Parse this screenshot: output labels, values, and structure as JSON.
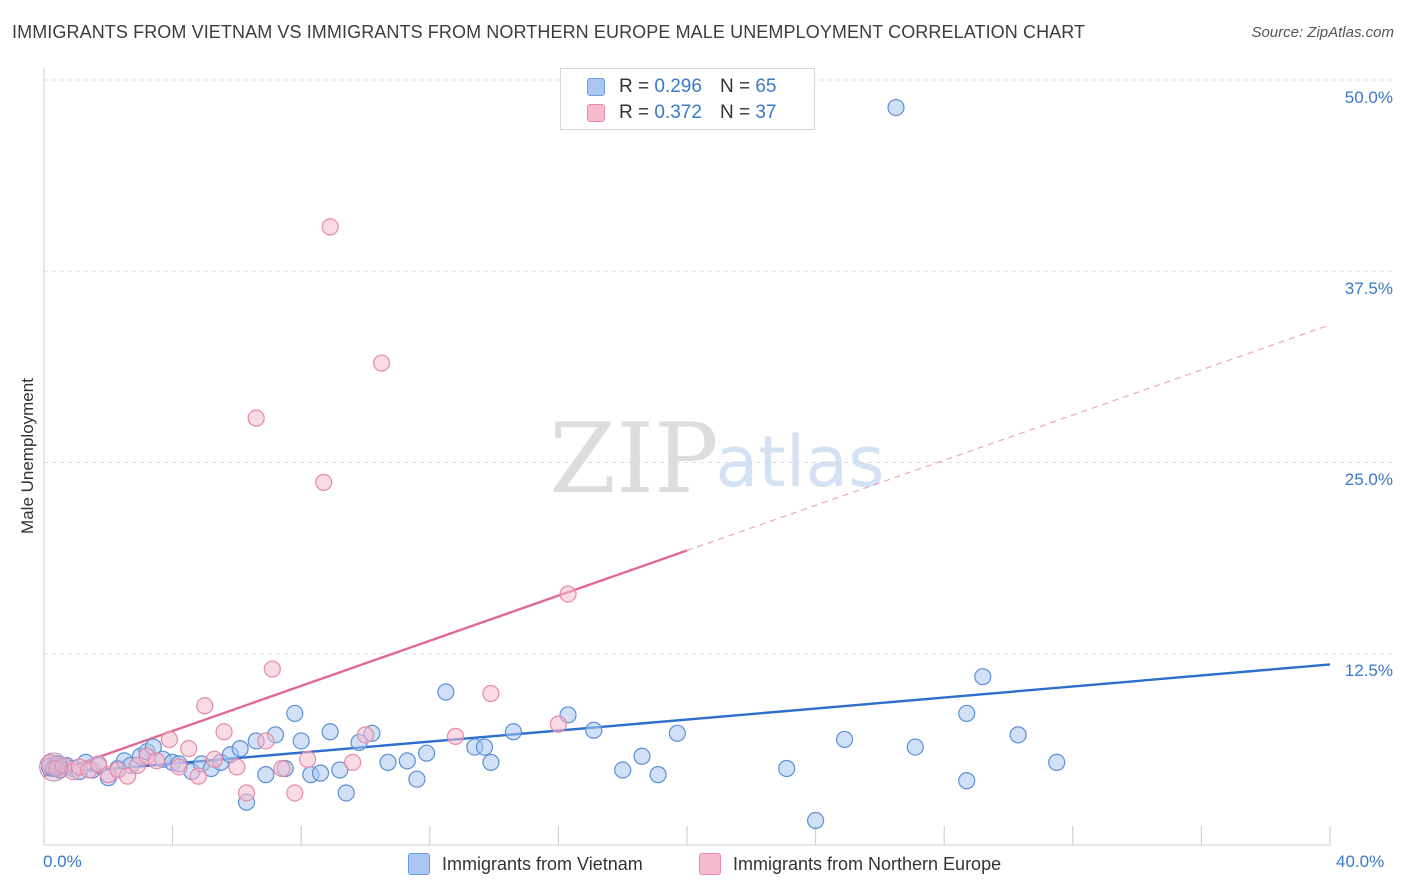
{
  "title": "IMMIGRANTS FROM VIETNAM VS IMMIGRANTS FROM NORTHERN EUROPE MALE UNEMPLOYMENT CORRELATION CHART",
  "source": "Source: ZipAtlas.com",
  "watermark": {
    "zip": "ZIP",
    "atlas": "atlas"
  },
  "legend_top": {
    "rows": [
      {
        "r_label": "R =",
        "r_value": "0.296",
        "n_label": "N =",
        "n_value": "65",
        "color": "#a9c7ef",
        "stroke": "#6a9fe0"
      },
      {
        "r_label": "R =",
        "r_value": "0.372",
        "n_label": "N =",
        "n_value": "37",
        "color": "#f6bccd",
        "stroke": "#e889a8"
      }
    ]
  },
  "colors": {
    "blue_fill": "#a9c7ef",
    "blue_stroke": "#5b8fd6",
    "blue_line": "#2f6fcc",
    "pink_fill": "#f6bccd",
    "pink_stroke": "#e889a8",
    "pink_line": "#e06a94",
    "grid": "#dddddd",
    "axis_text": "#3a78c9"
  },
  "chart_data": {
    "type": "scatter",
    "title": "IMMIGRANTS FROM VIETNAM VS IMMIGRANTS FROM NORTHERN EUROPE MALE UNEMPLOYMENT CORRELATION CHART",
    "xlabel": "",
    "ylabel": "Male Unemployment",
    "xlim": [
      0,
      40
    ],
    "ylim": [
      0,
      50
    ],
    "x_tick_labels": [
      "0.0%",
      "40.0%"
    ],
    "y_ticks": [
      12.5,
      25.0,
      37.5,
      50.0
    ],
    "y_tick_labels": [
      "12.5%",
      "25.0%",
      "37.5%",
      "50.0%"
    ],
    "grid": true,
    "series": [
      {
        "name": "Immigrants from Vietnam",
        "R": 0.296,
        "N": 65,
        "trend": {
          "x": [
            0,
            40
          ],
          "y": [
            4.6,
            11.8
          ],
          "solid_until": 40
        },
        "points": [
          [
            0.2,
            5.1
          ],
          [
            0.4,
            5.3
          ],
          [
            0.5,
            4.9
          ],
          [
            0.7,
            5.2
          ],
          [
            0.9,
            5.0
          ],
          [
            1.1,
            4.8
          ],
          [
            1.3,
            5.4
          ],
          [
            1.5,
            4.9
          ],
          [
            1.7,
            5.2
          ],
          [
            2.0,
            4.4
          ],
          [
            2.3,
            5.0
          ],
          [
            2.5,
            5.5
          ],
          [
            2.7,
            5.2
          ],
          [
            3.0,
            5.8
          ],
          [
            3.2,
            6.1
          ],
          [
            3.4,
            6.4
          ],
          [
            3.7,
            5.6
          ],
          [
            4.0,
            5.4
          ],
          [
            4.2,
            5.3
          ],
          [
            4.6,
            4.8
          ],
          [
            4.9,
            5.3
          ],
          [
            5.2,
            5.0
          ],
          [
            5.5,
            5.4
          ],
          [
            5.8,
            5.9
          ],
          [
            6.1,
            6.3
          ],
          [
            6.3,
            2.8
          ],
          [
            6.6,
            6.8
          ],
          [
            6.9,
            4.6
          ],
          [
            7.2,
            7.2
          ],
          [
            7.5,
            5.0
          ],
          [
            7.8,
            8.6
          ],
          [
            8.0,
            6.8
          ],
          [
            8.3,
            4.6
          ],
          [
            8.6,
            4.7
          ],
          [
            8.9,
            7.4
          ],
          [
            9.2,
            4.9
          ],
          [
            9.4,
            3.4
          ],
          [
            9.8,
            6.7
          ],
          [
            10.2,
            7.3
          ],
          [
            10.7,
            5.4
          ],
          [
            11.3,
            5.5
          ],
          [
            11.6,
            4.3
          ],
          [
            11.9,
            6.0
          ],
          [
            12.5,
            10.0
          ],
          [
            13.4,
            6.4
          ],
          [
            13.7,
            6.4
          ],
          [
            13.9,
            5.4
          ],
          [
            14.6,
            7.4
          ],
          [
            16.3,
            8.5
          ],
          [
            17.1,
            7.5
          ],
          [
            18.0,
            4.9
          ],
          [
            18.6,
            5.8
          ],
          [
            19.1,
            4.6
          ],
          [
            19.7,
            7.3
          ],
          [
            23.1,
            5.0
          ],
          [
            24.0,
            1.6
          ],
          [
            24.9,
            6.9
          ],
          [
            26.5,
            48.2
          ],
          [
            27.1,
            6.4
          ],
          [
            28.7,
            4.2
          ],
          [
            28.7,
            8.6
          ],
          [
            29.2,
            11.0
          ],
          [
            30.3,
            7.2
          ],
          [
            31.5,
            5.4
          ],
          [
            0.3,
            5.0
          ]
        ]
      },
      {
        "name": "Immigrants from Northern Europe",
        "R": 0.372,
        "N": 37,
        "trend": {
          "x": [
            0,
            40
          ],
          "y": [
            4.5,
            34.0
          ],
          "solid_until": 20
        },
        "points": [
          [
            0.2,
            5.3
          ],
          [
            0.4,
            5.0
          ],
          [
            0.6,
            5.2
          ],
          [
            0.9,
            4.8
          ],
          [
            1.1,
            5.1
          ],
          [
            1.4,
            4.9
          ],
          [
            1.7,
            5.3
          ],
          [
            2.0,
            4.6
          ],
          [
            2.3,
            4.9
          ],
          [
            2.6,
            4.5
          ],
          [
            2.9,
            5.2
          ],
          [
            3.2,
            5.8
          ],
          [
            3.5,
            5.5
          ],
          [
            3.9,
            6.9
          ],
          [
            4.2,
            5.1
          ],
          [
            4.5,
            6.3
          ],
          [
            4.8,
            4.5
          ],
          [
            5.0,
            9.1
          ],
          [
            5.3,
            5.6
          ],
          [
            5.6,
            7.4
          ],
          [
            6.0,
            5.1
          ],
          [
            6.3,
            3.4
          ],
          [
            6.6,
            27.9
          ],
          [
            6.9,
            6.8
          ],
          [
            7.1,
            11.5
          ],
          [
            7.4,
            5.0
          ],
          [
            7.8,
            3.4
          ],
          [
            8.2,
            5.6
          ],
          [
            8.7,
            23.7
          ],
          [
            8.9,
            40.4
          ],
          [
            9.6,
            5.4
          ],
          [
            10.0,
            7.2
          ],
          [
            10.5,
            31.5
          ],
          [
            12.8,
            7.1
          ],
          [
            13.9,
            9.9
          ],
          [
            16.0,
            7.9
          ],
          [
            16.3,
            16.4
          ]
        ]
      }
    ]
  },
  "legend_bottom": [
    {
      "label": "Immigrants from Vietnam"
    },
    {
      "label": "Immigrants from Northern Europe"
    }
  ]
}
